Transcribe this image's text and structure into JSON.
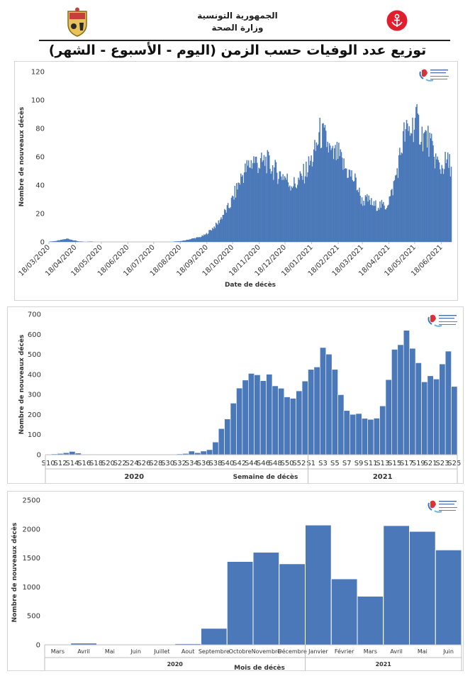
{
  "header": {
    "republic": "الجمهورية التونسية",
    "ministry": "وزارة الصحة",
    "title": "توزيع عدد الوفيات حسب الزمن (اليوم - الأسبوع - الشهر)"
  },
  "colors": {
    "bar": "#4a78b8",
    "bar_stroke": "#ffffff",
    "axis": "#bfbfbf"
  },
  "chart_data": [
    {
      "type": "bar",
      "id": "daily",
      "xlabel": "Date de décès",
      "ylabel": "Nombre de nouveaux décès",
      "ylim": [
        0,
        120
      ],
      "yticks": [
        0,
        20,
        40,
        60,
        80,
        100,
        120
      ],
      "x_tick_labels": [
        "18/03/2020",
        "18/04/2020",
        "18/05/2020",
        "18/06/2020",
        "18/07/2020",
        "18/08/2020",
        "18/09/2020",
        "18/10/2020",
        "18/11/2020",
        "18/12/2020",
        "18/01/2021",
        "18/02/2021",
        "18/03/2021",
        "18/04/2021",
        "18/05/2021",
        "18/06/2021"
      ],
      "x_start": "2020-03-18",
      "x_end": "2021-06-29",
      "weekly_profile": [
        0.2,
        0.6,
        1.4,
        2.3,
        1.2,
        0.3,
        0.2,
        0.3,
        0.1,
        0.1,
        0,
        0,
        0,
        0,
        0,
        0,
        0,
        0,
        0,
        0,
        0.1,
        0.3,
        0.6,
        1.5,
        2.5,
        3.3,
        5.1,
        9,
        12.9,
        19.9,
        25.4,
        35.6,
        46.3,
        52.7,
        58,
        54.3,
        57.3,
        52.7,
        48.3,
        47,
        41.3,
        40.6,
        45.6,
        52.4,
        60.7,
        76.4,
        71.9,
        60,
        61.9,
        53,
        47.9,
        42.1,
        28.7,
        29.6,
        25.6,
        25.9,
        25.1,
        34.6,
        53.1,
        75.3,
        78.4,
        85.6,
        75.4,
        72.3,
        61.3,
        51.6,
        56.1,
        54.1,
        63.9,
        73.3,
        48.6
      ]
    },
    {
      "type": "bar",
      "id": "weekly",
      "xlabel": "Semaine de décès",
      "ylabel": "Nombre de nouveaux décès",
      "ylim": [
        0,
        700
      ],
      "yticks": [
        0,
        100,
        200,
        300,
        400,
        500,
        600,
        700
      ],
      "categories": [
        "S10",
        "S11",
        "S12",
        "S13",
        "S14",
        "S15",
        "S16",
        "S17",
        "S18",
        "S19",
        "S20",
        "S21",
        "S22",
        "S23",
        "S24",
        "S25",
        "S26",
        "S27",
        "S28",
        "S29",
        "S30",
        "S31",
        "S32",
        "S33",
        "S34",
        "S35",
        "S36",
        "S37",
        "S38",
        "S39",
        "S40",
        "S41",
        "S42",
        "S43",
        "S44",
        "S45",
        "S46",
        "S47",
        "S48",
        "S49",
        "S50",
        "S51",
        "S52",
        "S53",
        "S1",
        "S2",
        "S3",
        "S4",
        "S5",
        "S6",
        "S7",
        "S8",
        "S9",
        "S10",
        "S11",
        "S12",
        "S13",
        "S14",
        "S15",
        "S16",
        "S17",
        "S18",
        "S19",
        "S20",
        "S21",
        "S22",
        "S23",
        "S24",
        "S25"
      ],
      "tick_labels": [
        "S10",
        "S12",
        "S14",
        "S16",
        "S18",
        "S20",
        "S22",
        "S24",
        "S26",
        "S28",
        "S30",
        "S32",
        "S34",
        "S36",
        "S38",
        "S40",
        "S42",
        "S44",
        "S46",
        "S48",
        "S50",
        "S52",
        "S1",
        "S3",
        "S5",
        "S7",
        "S9",
        "S11",
        "S13",
        "S15",
        "S17",
        "S19",
        "S21",
        "S23",
        "S25"
      ],
      "values": [
        1,
        4,
        6,
        10,
        16,
        8,
        2,
        2,
        1,
        1,
        0,
        0,
        0,
        0,
        0,
        0,
        0,
        0,
        0,
        0,
        1,
        2,
        4,
        6,
        18,
        10,
        18,
        25,
        63,
        130,
        178,
        257,
        332,
        372,
        405,
        398,
        369,
        401,
        343,
        331,
        288,
        281,
        318,
        367,
        425,
        437,
        534,
        501,
        425,
        299,
        220,
        201,
        205,
        181,
        176,
        182,
        243,
        374,
        525,
        548,
        620,
        530,
        458,
        363,
        393,
        377,
        452,
        516,
        340
      ],
      "year_groups": [
        {
          "label": "2020",
          "count": 44
        },
        {
          "label": "2021",
          "count": 25
        }
      ]
    },
    {
      "type": "bar",
      "id": "monthly",
      "xlabel": "Mois de décès",
      "ylabel": "Nombre de nouveaux décès",
      "ylim": [
        0,
        2500
      ],
      "yticks": [
        0,
        500,
        1000,
        1500,
        2000,
        2500
      ],
      "categories": [
        "Mars",
        "Avril",
        "Mai",
        "Juin",
        "Juillet",
        "Aout",
        "Septembre",
        "Octobre",
        "Novembre",
        "Décembre",
        "Janvier",
        "Février",
        "Mars",
        "Avril",
        "Mai",
        "Juin"
      ],
      "values": [
        4,
        30,
        3,
        1,
        3,
        20,
        285,
        1440,
        1600,
        1400,
        2070,
        1140,
        840,
        2060,
        1960,
        1640
      ],
      "year_groups": [
        {
          "label": "2020",
          "count": 10
        },
        {
          "label": "2021",
          "count": 6
        }
      ]
    }
  ]
}
